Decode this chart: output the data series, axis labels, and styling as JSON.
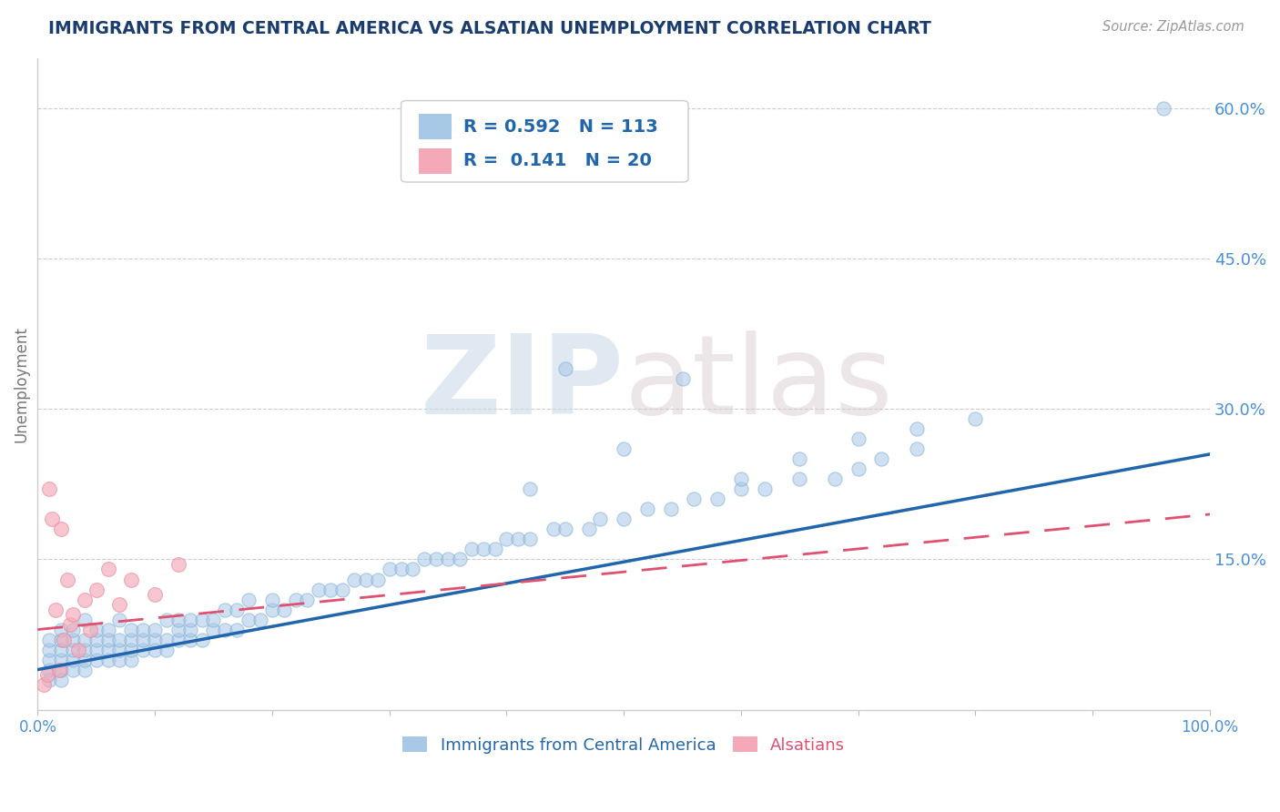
{
  "title": "IMMIGRANTS FROM CENTRAL AMERICA VS ALSATIAN UNEMPLOYMENT CORRELATION CHART",
  "source": "Source: ZipAtlas.com",
  "ylabel": "Unemployment",
  "xlim": [
    0.0,
    1.0
  ],
  "ylim": [
    0.0,
    0.65
  ],
  "x_ticks": [
    0.0,
    0.1,
    0.2,
    0.3,
    0.4,
    0.5,
    0.6,
    0.7,
    0.8,
    0.9,
    1.0
  ],
  "x_tick_labels": [
    "0.0%",
    "",
    "",
    "",
    "",
    "",
    "",
    "",
    "",
    "",
    "100.0%"
  ],
  "y_ticks": [
    0.15,
    0.3,
    0.45,
    0.6
  ],
  "y_tick_labels": [
    "15.0%",
    "30.0%",
    "45.0%",
    "60.0%"
  ],
  "blue_R": 0.592,
  "blue_N": 113,
  "pink_R": 0.141,
  "pink_N": 20,
  "blue_color": "#a8c8e8",
  "pink_color": "#f4a8b8",
  "blue_edge_color": "#7aaacf",
  "pink_edge_color": "#e8889a",
  "blue_line_color": "#2166ac",
  "pink_line_color": "#e05070",
  "legend_blue_label": "Immigrants from Central America",
  "legend_pink_label": "Alsatians",
  "watermark_zip": "ZIP",
  "watermark_atlas": "atlas",
  "title_color": "#1a3c6e",
  "axis_color": "#4a90d9",
  "blue_scatter_x": [
    0.01,
    0.01,
    0.01,
    0.01,
    0.01,
    0.02,
    0.02,
    0.02,
    0.02,
    0.02,
    0.02,
    0.03,
    0.03,
    0.03,
    0.03,
    0.03,
    0.04,
    0.04,
    0.04,
    0.04,
    0.04,
    0.05,
    0.05,
    0.05,
    0.05,
    0.06,
    0.06,
    0.06,
    0.06,
    0.07,
    0.07,
    0.07,
    0.07,
    0.08,
    0.08,
    0.08,
    0.08,
    0.09,
    0.09,
    0.09,
    0.1,
    0.1,
    0.1,
    0.11,
    0.11,
    0.11,
    0.12,
    0.12,
    0.12,
    0.13,
    0.13,
    0.13,
    0.14,
    0.14,
    0.15,
    0.15,
    0.16,
    0.16,
    0.17,
    0.17,
    0.18,
    0.18,
    0.19,
    0.2,
    0.2,
    0.21,
    0.22,
    0.23,
    0.24,
    0.25,
    0.26,
    0.27,
    0.28,
    0.29,
    0.3,
    0.31,
    0.32,
    0.33,
    0.34,
    0.35,
    0.36,
    0.37,
    0.38,
    0.39,
    0.4,
    0.41,
    0.42,
    0.44,
    0.45,
    0.47,
    0.48,
    0.5,
    0.52,
    0.54,
    0.56,
    0.58,
    0.6,
    0.62,
    0.65,
    0.68,
    0.7,
    0.72,
    0.75,
    0.42,
    0.45,
    0.5,
    0.55,
    0.6,
    0.65,
    0.96,
    0.7,
    0.75,
    0.8
  ],
  "blue_scatter_y": [
    0.04,
    0.05,
    0.06,
    0.07,
    0.03,
    0.04,
    0.05,
    0.06,
    0.07,
    0.03,
    0.08,
    0.04,
    0.05,
    0.06,
    0.07,
    0.08,
    0.04,
    0.05,
    0.06,
    0.07,
    0.09,
    0.05,
    0.06,
    0.07,
    0.08,
    0.05,
    0.06,
    0.07,
    0.08,
    0.05,
    0.06,
    0.07,
    0.09,
    0.05,
    0.06,
    0.07,
    0.08,
    0.06,
    0.07,
    0.08,
    0.06,
    0.07,
    0.08,
    0.06,
    0.07,
    0.09,
    0.07,
    0.08,
    0.09,
    0.07,
    0.08,
    0.09,
    0.07,
    0.09,
    0.08,
    0.09,
    0.08,
    0.1,
    0.08,
    0.1,
    0.09,
    0.11,
    0.09,
    0.1,
    0.11,
    0.1,
    0.11,
    0.11,
    0.12,
    0.12,
    0.12,
    0.13,
    0.13,
    0.13,
    0.14,
    0.14,
    0.14,
    0.15,
    0.15,
    0.15,
    0.15,
    0.16,
    0.16,
    0.16,
    0.17,
    0.17,
    0.17,
    0.18,
    0.18,
    0.18,
    0.19,
    0.19,
    0.2,
    0.2,
    0.21,
    0.21,
    0.22,
    0.22,
    0.23,
    0.23,
    0.24,
    0.25,
    0.26,
    0.22,
    0.34,
    0.26,
    0.33,
    0.23,
    0.25,
    0.6,
    0.27,
    0.28,
    0.29
  ],
  "pink_scatter_x": [
    0.005,
    0.008,
    0.01,
    0.012,
    0.015,
    0.018,
    0.02,
    0.022,
    0.025,
    0.028,
    0.03,
    0.035,
    0.04,
    0.045,
    0.05,
    0.06,
    0.07,
    0.08,
    0.1,
    0.12
  ],
  "pink_scatter_y": [
    0.025,
    0.035,
    0.22,
    0.19,
    0.1,
    0.04,
    0.18,
    0.07,
    0.13,
    0.085,
    0.095,
    0.06,
    0.11,
    0.08,
    0.12,
    0.14,
    0.105,
    0.13,
    0.115,
    0.145
  ],
  "blue_trend_x0": 0.0,
  "blue_trend_y0": 0.04,
  "blue_trend_x1": 1.0,
  "blue_trend_y1": 0.255,
  "pink_trend_x0": 0.0,
  "pink_trend_y0": 0.08,
  "pink_trend_x1": 1.0,
  "pink_trend_y1": 0.195
}
